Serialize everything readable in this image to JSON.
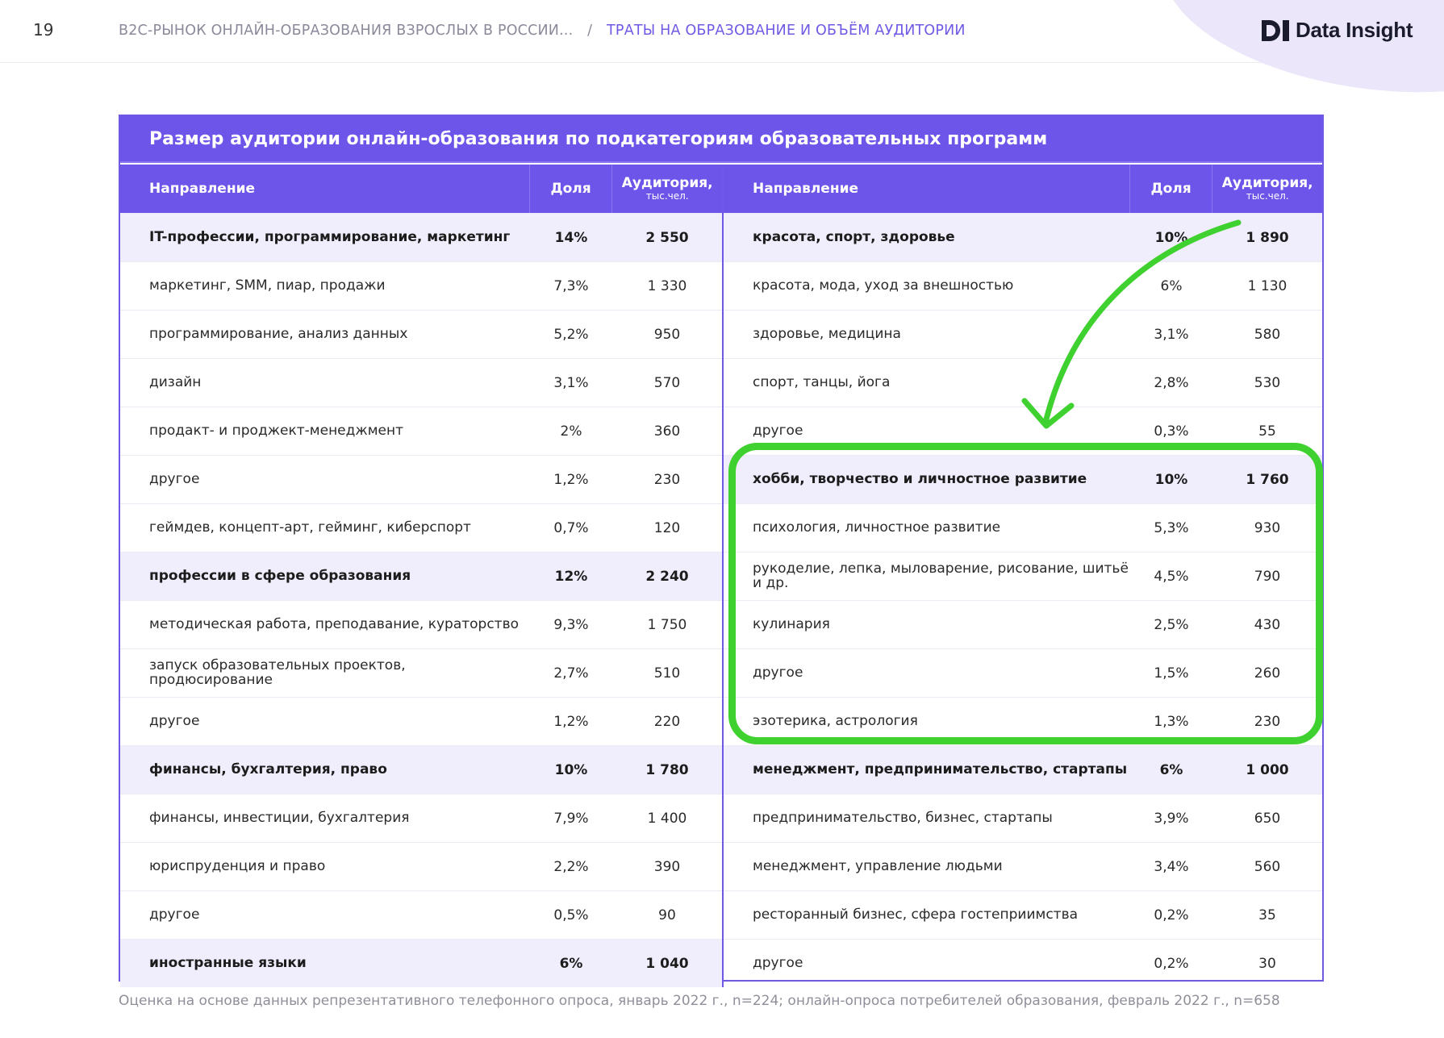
{
  "header": {
    "page_number": "19",
    "breadcrumb_parent": "B2C-РЫНОК ОНЛАЙН-ОБРАЗОВАНИЯ ВЗРОСЛЫХ В РОССИИ...",
    "breadcrumb_separator": "/",
    "breadcrumb_current": "ТРАТЫ НА ОБРАЗОВАНИЕ И ОБЪЁМ АУДИТОРИИ",
    "logo_text": "Data Insight"
  },
  "table": {
    "title": "Размер аудитории онлайн-образования по подкатегориям образовательных программ",
    "columns": {
      "direction": "Направление",
      "share": "Доля",
      "audience": "Аудитория,",
      "audience_unit": "тыс.чел."
    },
    "left_rows": [
      {
        "name": "IT-профессии, программирование, маркетинг",
        "share": "14%",
        "audience": "2 550",
        "group": true
      },
      {
        "name": "маркетинг, SMM, пиар, продажи",
        "share": "7,3%",
        "audience": "1 330",
        "group": false
      },
      {
        "name": "программирование, анализ данных",
        "share": "5,2%",
        "audience": "950",
        "group": false
      },
      {
        "name": "дизайн",
        "share": "3,1%",
        "audience": "570",
        "group": false
      },
      {
        "name": "продакт- и проджект-менеджмент",
        "share": "2%",
        "audience": "360",
        "group": false
      },
      {
        "name": "другое",
        "share": "1,2%",
        "audience": "230",
        "group": false
      },
      {
        "name": "геймдев, концепт-арт, гейминг, киберспорт",
        "share": "0,7%",
        "audience": "120",
        "group": false
      },
      {
        "name": "профессии в сфере образования",
        "share": "12%",
        "audience": "2 240",
        "group": true
      },
      {
        "name": "методическая работа, преподавание, кураторство",
        "share": "9,3%",
        "audience": "1 750",
        "group": false
      },
      {
        "name": "запуск образовательных проектов, продюсирование",
        "share": "2,7%",
        "audience": "510",
        "group": false
      },
      {
        "name": "другое",
        "share": "1,2%",
        "audience": "220",
        "group": false
      },
      {
        "name": "финансы, бухгалтерия, право",
        "share": "10%",
        "audience": "1 780",
        "group": true
      },
      {
        "name": "финансы, инвестиции, бухгалтерия",
        "share": "7,9%",
        "audience": "1 400",
        "group": false
      },
      {
        "name": "юриспруденция и право",
        "share": "2,2%",
        "audience": "390",
        "group": false
      },
      {
        "name": "другое",
        "share": "0,5%",
        "audience": "90",
        "group": false
      },
      {
        "name": "иностранные языки",
        "share": "6%",
        "audience": "1 040",
        "group": true
      }
    ],
    "right_rows": [
      {
        "name": "красота, спорт, здоровье",
        "share": "10%",
        "audience": "1 890",
        "group": true
      },
      {
        "name": "красота, мода, уход за внешностью",
        "share": "6%",
        "audience": "1 130",
        "group": false
      },
      {
        "name": "здоровье, медицина",
        "share": "3,1%",
        "audience": "580",
        "group": false
      },
      {
        "name": "спорт, танцы, йога",
        "share": "2,8%",
        "audience": "530",
        "group": false
      },
      {
        "name": "другое",
        "share": "0,3%",
        "audience": "55",
        "group": false
      },
      {
        "name": "хобби, творчество и личностное развитие",
        "share": "10%",
        "audience": "1 760",
        "group": true
      },
      {
        "name": "психология, личностное развитие",
        "share": "5,3%",
        "audience": "930",
        "group": false
      },
      {
        "name": "рукоделие, лепка, мыловарение, рисование, шитьё и др.",
        "share": "4,5%",
        "audience": "790",
        "group": false
      },
      {
        "name": "кулинария",
        "share": "2,5%",
        "audience": "430",
        "group": false
      },
      {
        "name": "другое",
        "share": "1,5%",
        "audience": "260",
        "group": false
      },
      {
        "name": "эзотерика, астрология",
        "share": "1,3%",
        "audience": "230",
        "group": false
      },
      {
        "name": "менеджмент, предпринимательство, стартапы",
        "share": "6%",
        "audience": "1 000",
        "group": true
      },
      {
        "name": "предпринимательство, бизнес, стартапы",
        "share": "3,9%",
        "audience": "650",
        "group": false
      },
      {
        "name": "менеджмент, управление людьми",
        "share": "3,4%",
        "audience": "560",
        "group": false
      },
      {
        "name": "ресторанный бизнес, сфера гостеприимства",
        "share": "0,2%",
        "audience": "35",
        "group": false
      },
      {
        "name": "другое",
        "share": "0,2%",
        "audience": "30",
        "group": false
      }
    ]
  },
  "footnote": "Оценка на основе данных репрезентативного телефонного опроса, январь 2022 г., n=224; онлайн-опроса потребителей образования, февраль 2022 г., n=658",
  "colors": {
    "accent_purple": "#6e55ea",
    "group_row_bg": "#f0edfc",
    "highlight_green": "#3fd12f"
  }
}
